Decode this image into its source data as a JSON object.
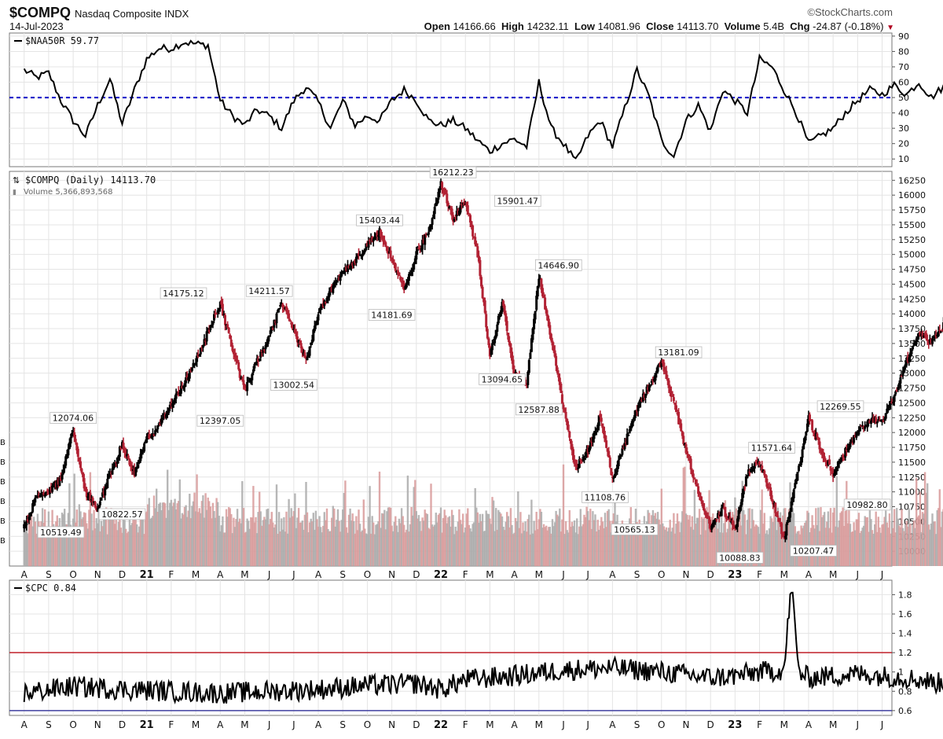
{
  "header": {
    "symbol": "$COMPQ",
    "name": "Nasdaq Composite",
    "exchange": "INDX",
    "date": "14-Jul-2023",
    "brand": "©StockCharts.com",
    "open_label": "Open",
    "open": "14166.66",
    "high_label": "High",
    "high": "14232.11",
    "low_label": "Low",
    "low": "14081.96",
    "close_label": "Close",
    "close": "14113.70",
    "volume_label": "Volume",
    "volume": "5.4B",
    "chg_label": "Chg",
    "chg": "-24.87 (-0.18%)"
  },
  "colors": {
    "up": "#000000",
    "down": "#b22234",
    "ref_blue": "#0000c8",
    "ref_red": "#c0202a",
    "ref_navy": "#4040a0",
    "vol_gray": "#aaaaaa",
    "vol_red": "#d89a9a"
  },
  "month_labels": [
    "A",
    "S",
    "O",
    "N",
    "D",
    "21",
    "F",
    "M",
    "A",
    "M",
    "J",
    "J",
    "A",
    "S",
    "O",
    "N",
    "D",
    "22",
    "F",
    "M",
    "A",
    "M",
    "J",
    "J",
    "A",
    "S",
    "O",
    "N",
    "D",
    "23",
    "F",
    "M",
    "A",
    "M",
    "J",
    "J"
  ],
  "chart_data": [
    {
      "type": "line",
      "panel": "top",
      "legend": "$NAA50R 59.77",
      "ylim": [
        5,
        92
      ],
      "yticks": [
        10,
        20,
        30,
        40,
        50,
        60,
        70,
        80,
        90
      ],
      "reference_line": 50,
      "points": [
        [
          0,
          68
        ],
        [
          0.5,
          63
        ],
        [
          1,
          66
        ],
        [
          1.5,
          48
        ],
        [
          2,
          35
        ],
        [
          2.5,
          25
        ],
        [
          3,
          45
        ],
        [
          3.5,
          62
        ],
        [
          4,
          33
        ],
        [
          4.5,
          55
        ],
        [
          5,
          75
        ],
        [
          5.5,
          82
        ],
        [
          6,
          82
        ],
        [
          6.5,
          86
        ],
        [
          7,
          85
        ],
        [
          7.5,
          84
        ],
        [
          8,
          48
        ],
        [
          8.5,
          38
        ],
        [
          9,
          32
        ],
        [
          9.5,
          42
        ],
        [
          10,
          38
        ],
        [
          10.5,
          30
        ],
        [
          11,
          48
        ],
        [
          11.5,
          57
        ],
        [
          12,
          47
        ],
        [
          12.5,
          30
        ],
        [
          13,
          48
        ],
        [
          13.5,
          32
        ],
        [
          14,
          38
        ],
        [
          14.5,
          35
        ],
        [
          15,
          48
        ],
        [
          15.5,
          55
        ],
        [
          16,
          48
        ],
        [
          16.5,
          35
        ],
        [
          17,
          32
        ],
        [
          17.5,
          35
        ],
        [
          18,
          30
        ],
        [
          18.5,
          22
        ],
        [
          19,
          15
        ],
        [
          19.5,
          20
        ],
        [
          20,
          23
        ],
        [
          20.5,
          18
        ],
        [
          21,
          60
        ],
        [
          21.5,
          30
        ],
        [
          22,
          20
        ],
        [
          22.5,
          8
        ],
        [
          23,
          25
        ],
        [
          23.5,
          35
        ],
        [
          24,
          18
        ],
        [
          25,
          68
        ],
        [
          25.5,
          50
        ],
        [
          26,
          22
        ],
        [
          26.5,
          12
        ],
        [
          27,
          35
        ],
        [
          27.5,
          45
        ],
        [
          28,
          28
        ],
        [
          28.5,
          55
        ],
        [
          29,
          48
        ],
        [
          29.5,
          40
        ],
        [
          30,
          75
        ],
        [
          30.5,
          70
        ],
        [
          31,
          55
        ],
        [
          31.5,
          40
        ],
        [
          32,
          20
        ],
        [
          32.5,
          25
        ],
        [
          33,
          30
        ],
        [
          33.5,
          40
        ],
        [
          34,
          48
        ],
        [
          34.5,
          55
        ],
        [
          35,
          52
        ],
        [
          35.5,
          58
        ],
        [
          36,
          52
        ],
        [
          36.5,
          60
        ],
        [
          37,
          50
        ],
        [
          37.5,
          57
        ],
        [
          38,
          63
        ],
        [
          38.5,
          59.77
        ]
      ]
    },
    {
      "type": "candlestick",
      "panel": "main",
      "legend": "$COMPQ (Daily) 14113.70",
      "volume_legend": "Volume 5,366,893,568",
      "ylim": [
        9750,
        16400
      ],
      "yticks": [
        10000,
        10250,
        10500,
        10750,
        11000,
        11250,
        11500,
        11750,
        12000,
        12250,
        12500,
        12750,
        13000,
        13250,
        13500,
        13750,
        14000,
        14250,
        14500,
        14750,
        15000,
        15250,
        15500,
        15750,
        16000,
        16250
      ],
      "path": [
        [
          0,
          10400
        ],
        [
          0.5,
          10900
        ],
        [
          1.5,
          11200
        ],
        [
          2,
          12074.06
        ],
        [
          2.5,
          11000
        ],
        [
          3,
          10700
        ],
        [
          3.5,
          11300
        ],
        [
          4,
          11800
        ],
        [
          4.5,
          11300
        ],
        [
          5,
          11900
        ],
        [
          5.5,
          12100
        ],
        [
          6,
          12500
        ],
        [
          6.5,
          12800
        ],
        [
          7,
          13200
        ],
        [
          7.5,
          13700
        ],
        [
          8,
          14175.12
        ],
        [
          8.5,
          13400
        ],
        [
          9,
          12700
        ],
        [
          9.5,
          13200
        ],
        [
          10,
          13600
        ],
        [
          10.5,
          14211.57
        ],
        [
          11,
          13700
        ],
        [
          11.5,
          13200
        ],
        [
          12,
          14000
        ],
        [
          12.5,
          14400
        ],
        [
          13,
          14700
        ],
        [
          13.5,
          14900
        ],
        [
          14.5,
          15403.44
        ],
        [
          15,
          14900
        ],
        [
          15.5,
          14400
        ],
        [
          16,
          15000
        ],
        [
          16.5,
          15400
        ],
        [
          17,
          16212.23
        ],
        [
          17.5,
          15600
        ],
        [
          18,
          15900
        ],
        [
          18.5,
          15000
        ],
        [
          19,
          13300
        ],
        [
          19.5,
          14200
        ],
        [
          20,
          13000
        ],
        [
          20.5,
          12800
        ],
        [
          21,
          14646.9
        ],
        [
          21.5,
          13600
        ],
        [
          22,
          12400
        ],
        [
          22.5,
          11400
        ],
        [
          23,
          11700
        ],
        [
          23.5,
          12300
        ],
        [
          24,
          11200
        ],
        [
          24.5,
          11800
        ],
        [
          25,
          12400
        ],
        [
          25.5,
          12800
        ],
        [
          26,
          13181.09
        ],
        [
          26.5,
          12500
        ],
        [
          27,
          11700
        ],
        [
          27.5,
          11000
        ],
        [
          28,
          10400
        ],
        [
          28.5,
          10700
        ],
        [
          29,
          10400
        ],
        [
          29.5,
          11300
        ],
        [
          30,
          11500
        ],
        [
          30.5,
          10900
        ],
        [
          31,
          10207.47
        ],
        [
          31.5,
          11200
        ],
        [
          32,
          12269.55
        ],
        [
          32.5,
          11700
        ],
        [
          33,
          11300
        ],
        [
          33.5,
          11700
        ],
        [
          34,
          12000
        ],
        [
          34.5,
          12200
        ],
        [
          35,
          12200
        ],
        [
          35.5,
          12600
        ],
        [
          36,
          13200
        ],
        [
          36.5,
          13700
        ],
        [
          37,
          13500
        ],
        [
          37.5,
          13800
        ],
        [
          38,
          14000
        ],
        [
          38.5,
          14113.7
        ]
      ],
      "annotations": [
        {
          "text": "12074.06",
          "x": 2,
          "y": 12074.06,
          "pos": "above"
        },
        {
          "text": "10519.49",
          "x": 1.5,
          "y": 10519.49,
          "pos": "below"
        },
        {
          "text": "10822.57",
          "x": 4,
          "y": 10822.57,
          "pos": "below"
        },
        {
          "text": "14175.12",
          "x": 6.5,
          "y": 14175.12,
          "pos": "above"
        },
        {
          "text": "12397.05",
          "x": 8,
          "y": 12397.05,
          "pos": "below"
        },
        {
          "text": "14211.57",
          "x": 10,
          "y": 14211.57,
          "pos": "above"
        },
        {
          "text": "13002.54",
          "x": 11,
          "y": 13002.54,
          "pos": "below"
        },
        {
          "text": "15403.44",
          "x": 14.5,
          "y": 15403.44,
          "pos": "above"
        },
        {
          "text": "14181.69",
          "x": 15,
          "y": 14181.69,
          "pos": "below"
        },
        {
          "text": "16212.23",
          "x": 17.5,
          "y": 16212.23,
          "pos": "above"
        },
        {
          "text": "15901.47",
          "x": 19,
          "y": 15901.47,
          "pos": "right"
        },
        {
          "text": "13094.65",
          "x": 19.5,
          "y": 13094.65,
          "pos": "below"
        },
        {
          "text": "14646.90",
          "x": 21.8,
          "y": 14646.9,
          "pos": "above"
        },
        {
          "text": "12587.88",
          "x": 21,
          "y": 12587.88,
          "pos": "below"
        },
        {
          "text": "11108.76",
          "x": 23.7,
          "y": 11108.76,
          "pos": "below"
        },
        {
          "text": "10565.13",
          "x": 24.9,
          "y": 10565.13,
          "pos": "below"
        },
        {
          "text": "13181.09",
          "x": 26.7,
          "y": 13181.09,
          "pos": "above"
        },
        {
          "text": "10088.83",
          "x": 29.2,
          "y": 10088.83,
          "pos": "below"
        },
        {
          "text": "11571.64",
          "x": 30.5,
          "y": 11571.64,
          "pos": "above"
        },
        {
          "text": "10207.47",
          "x": 32.2,
          "y": 10207.47,
          "pos": "below"
        },
        {
          "text": "12269.55",
          "x": 33.3,
          "y": 12269.55,
          "pos": "above"
        },
        {
          "text": "10982.80",
          "x": 34.5,
          "y": 10982.8,
          "pos": "below"
        }
      ]
    },
    {
      "type": "line",
      "panel": "bottom",
      "legend": "$CPC 0.84",
      "ylim": [
        0.55,
        1.95
      ],
      "yticks": [
        0.6,
        0.8,
        1.0,
        1.2,
        1.4,
        1.6,
        1.8
      ],
      "reference_lines": [
        1.2,
        0.6
      ],
      "points": [
        [
          0,
          0.78
        ],
        [
          2,
          0.85
        ],
        [
          4,
          0.82
        ],
        [
          6,
          0.8
        ],
        [
          8,
          0.78
        ],
        [
          10,
          0.8
        ],
        [
          12,
          0.82
        ],
        [
          14,
          0.86
        ],
        [
          16,
          0.88
        ],
        [
          17,
          0.82
        ],
        [
          18,
          0.92
        ],
        [
          20,
          0.96
        ],
        [
          22,
          1.02
        ],
        [
          24,
          1.04
        ],
        [
          26,
          1.0
        ],
        [
          28,
          0.94
        ],
        [
          29,
          0.96
        ],
        [
          30,
          1.0
        ],
        [
          31,
          1.02
        ],
        [
          31.3,
          1.9
        ],
        [
          31.6,
          1.0
        ],
        [
          32,
          0.94
        ],
        [
          34,
          0.98
        ],
        [
          36,
          0.94
        ],
        [
          37.5,
          0.88
        ],
        [
          38.5,
          0.84
        ]
      ]
    }
  ]
}
